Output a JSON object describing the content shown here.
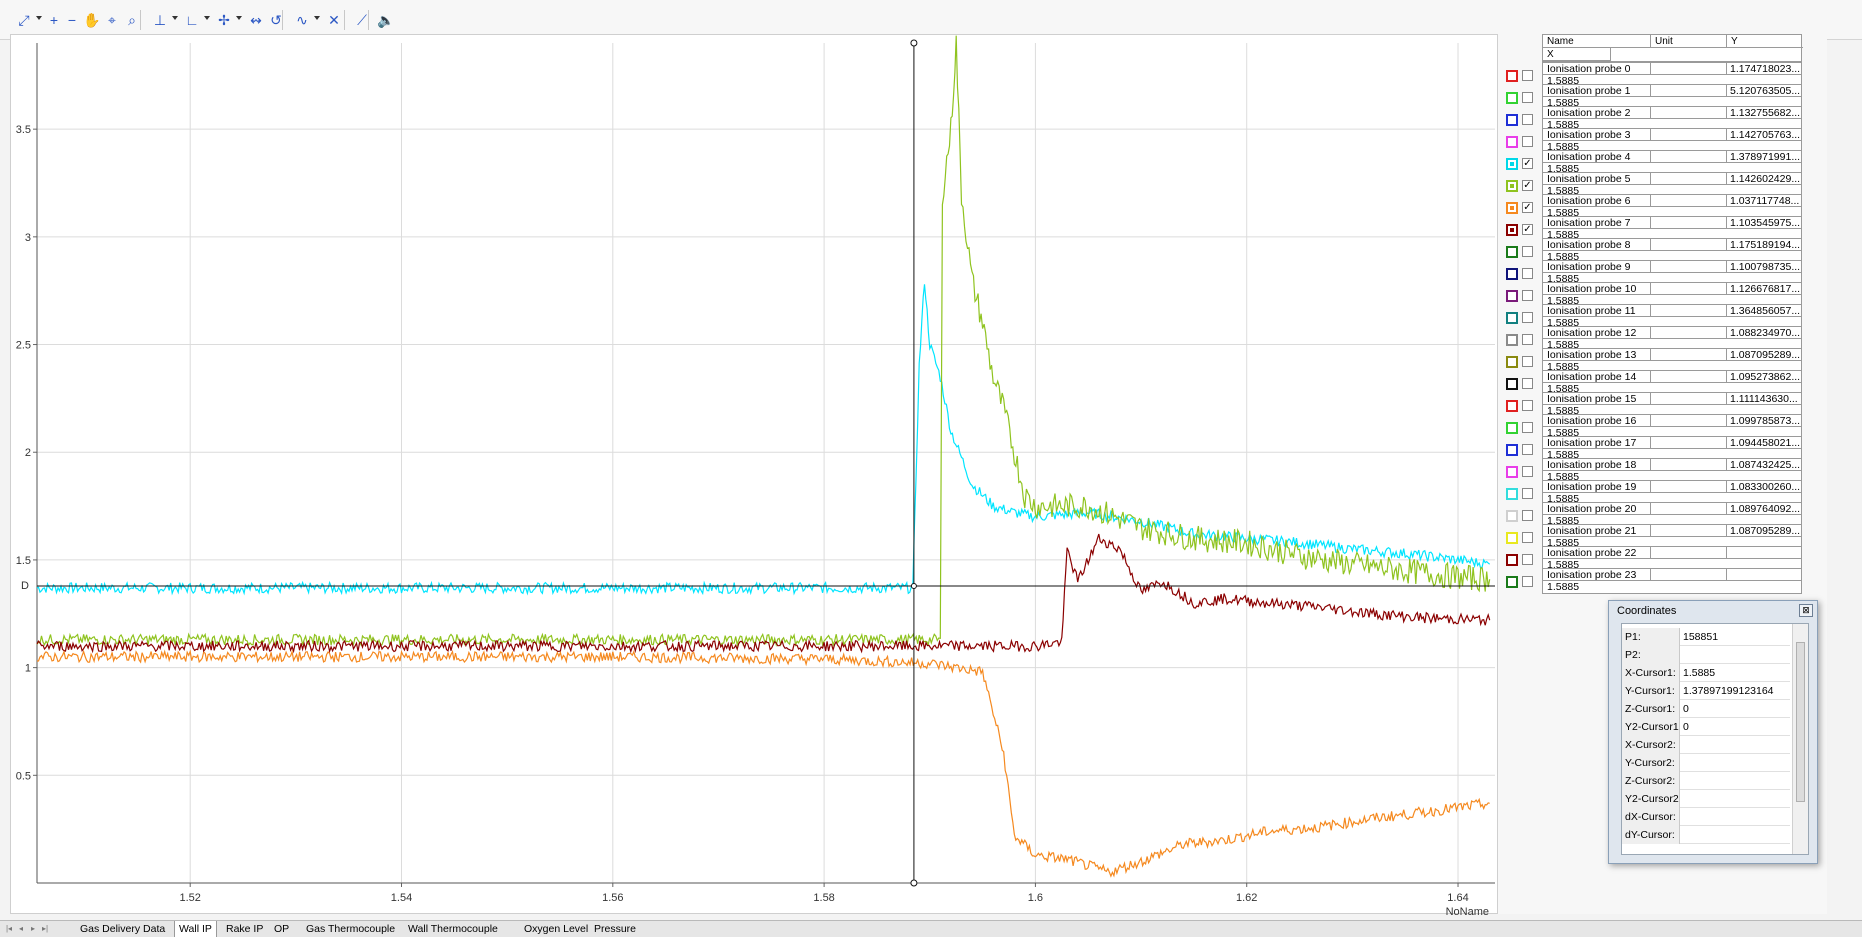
{
  "toolbar": {
    "items": [
      {
        "icon": "auto-scale-icon",
        "glyph": "⤢",
        "dropdown": true
      },
      {
        "icon": "zoom-in-icon",
        "glyph": "+"
      },
      {
        "icon": "zoom-out-icon",
        "glyph": "−"
      },
      {
        "icon": "pan-hand-icon",
        "glyph": "✋"
      },
      {
        "icon": "zoom-reset-icon",
        "glyph": "⌖"
      },
      {
        "icon": "zoom-window-icon",
        "glyph": "⌕"
      },
      {
        "icon": "y-axis-scale-icon",
        "glyph": "⊥",
        "dropdown": true
      },
      {
        "icon": "x-axis-scale-icon",
        "glyph": "∟",
        "dropdown": true
      },
      {
        "icon": "cursor-icon",
        "glyph": "✢",
        "dropdown": true
      },
      {
        "icon": "cursor-sync-icon",
        "glyph": "↭"
      },
      {
        "icon": "cursor-reset-icon",
        "glyph": "↺"
      },
      {
        "icon": "curve-fit-icon",
        "glyph": "∿",
        "dropdown": true
      },
      {
        "icon": "marker-icon",
        "glyph": "✕"
      },
      {
        "icon": "trend-icon",
        "glyph": "⟋"
      },
      {
        "icon": "sound-icon",
        "glyph": "🔈"
      }
    ]
  },
  "plot": {
    "x_axis_label": "NoName",
    "x_ticks": [
      "1.52",
      "1.54",
      "1.56",
      "1.58",
      "1.6",
      "1.62",
      "1.64"
    ],
    "y_ticks": [
      "0.5",
      "1",
      "1.5",
      "2",
      "2.5",
      "3",
      "3.5"
    ],
    "cursor_label": "D"
  },
  "chart_data": {
    "type": "line",
    "xlabel": "NoName",
    "ylabel": "",
    "xlim": [
      1.5055,
      1.6435
    ],
    "ylim": [
      0.0,
      3.9
    ],
    "grid": true,
    "cursor": {
      "x": 1.5885,
      "y": 1.37897199123164
    },
    "series": [
      {
        "name": "Ionisation probe 4",
        "color": "#00e5ff",
        "points": [
          [
            1.5055,
            1.37
          ],
          [
            1.52,
            1.37
          ],
          [
            1.54,
            1.37
          ],
          [
            1.56,
            1.37
          ],
          [
            1.58,
            1.37
          ],
          [
            1.5884,
            1.37
          ],
          [
            1.589,
            2.4
          ],
          [
            1.5895,
            2.8
          ],
          [
            1.59,
            2.5
          ],
          [
            1.591,
            2.35
          ],
          [
            1.592,
            2.1
          ],
          [
            1.594,
            1.85
          ],
          [
            1.596,
            1.75
          ],
          [
            1.598,
            1.72
          ],
          [
            1.6,
            1.7
          ],
          [
            1.605,
            1.72
          ],
          [
            1.61,
            1.68
          ],
          [
            1.615,
            1.62
          ],
          [
            1.62,
            1.6
          ],
          [
            1.625,
            1.58
          ],
          [
            1.63,
            1.55
          ],
          [
            1.635,
            1.53
          ],
          [
            1.64,
            1.5
          ],
          [
            1.643,
            1.48
          ]
        ]
      },
      {
        "name": "Ionisation probe 5",
        "color": "#8fc31f",
        "points": [
          [
            1.5055,
            1.13
          ],
          [
            1.52,
            1.13
          ],
          [
            1.54,
            1.13
          ],
          [
            1.56,
            1.13
          ],
          [
            1.58,
            1.13
          ],
          [
            1.591,
            1.13
          ],
          [
            1.5912,
            3.2
          ],
          [
            1.592,
            3.5
          ],
          [
            1.5925,
            3.9
          ],
          [
            1.593,
            3.2
          ],
          [
            1.594,
            2.8
          ],
          [
            1.595,
            2.6
          ],
          [
            1.596,
            2.35
          ],
          [
            1.597,
            2.2
          ],
          [
            1.598,
            2.0
          ],
          [
            1.599,
            1.8
          ],
          [
            1.6,
            1.75
          ],
          [
            1.605,
            1.75
          ],
          [
            1.61,
            1.65
          ],
          [
            1.615,
            1.6
          ],
          [
            1.62,
            1.58
          ],
          [
            1.625,
            1.52
          ],
          [
            1.63,
            1.48
          ],
          [
            1.635,
            1.45
          ],
          [
            1.64,
            1.42
          ],
          [
            1.643,
            1.41
          ]
        ]
      },
      {
        "name": "Ionisation probe 6",
        "color": "#f5891f",
        "points": [
          [
            1.5055,
            1.05
          ],
          [
            1.52,
            1.05
          ],
          [
            1.54,
            1.05
          ],
          [
            1.56,
            1.05
          ],
          [
            1.58,
            1.04
          ],
          [
            1.59,
            1.02
          ],
          [
            1.595,
            0.98
          ],
          [
            1.597,
            0.6
          ],
          [
            1.598,
            0.22
          ],
          [
            1.6,
            0.13
          ],
          [
            1.603,
            0.11
          ],
          [
            1.607,
            0.05
          ],
          [
            1.61,
            0.1
          ],
          [
            1.614,
            0.18
          ],
          [
            1.618,
            0.2
          ],
          [
            1.622,
            0.24
          ],
          [
            1.627,
            0.26
          ],
          [
            1.632,
            0.3
          ],
          [
            1.637,
            0.33
          ],
          [
            1.643,
            0.37
          ]
        ]
      },
      {
        "name": "Ionisation probe 7",
        "color": "#8b0000",
        "points": [
          [
            1.5055,
            1.1
          ],
          [
            1.52,
            1.1
          ],
          [
            1.54,
            1.1
          ],
          [
            1.56,
            1.1
          ],
          [
            1.58,
            1.1
          ],
          [
            1.6,
            1.1
          ],
          [
            1.6025,
            1.12
          ],
          [
            1.603,
            1.55
          ],
          [
            1.604,
            1.4
          ],
          [
            1.606,
            1.6
          ],
          [
            1.608,
            1.55
          ],
          [
            1.61,
            1.35
          ],
          [
            1.612,
            1.4
          ],
          [
            1.615,
            1.3
          ],
          [
            1.618,
            1.32
          ],
          [
            1.622,
            1.3
          ],
          [
            1.627,
            1.28
          ],
          [
            1.632,
            1.25
          ],
          [
            1.637,
            1.23
          ],
          [
            1.643,
            1.22
          ]
        ]
      }
    ]
  },
  "panel": {
    "headers": {
      "name": "Name",
      "unit": "Unit",
      "y": "Y",
      "x": "X"
    },
    "signals": [
      {
        "name": "Ionisation probe 0",
        "y": "1.174718023...",
        "x": "1.5885",
        "color": "#e02020",
        "checked": false
      },
      {
        "name": "Ionisation probe 1",
        "y": "5.120763505...",
        "x": "1.5885",
        "color": "#32d232",
        "checked": false
      },
      {
        "name": "Ionisation probe 2",
        "y": "1.132755682...",
        "x": "1.5885",
        "color": "#1f2fd6",
        "checked": false
      },
      {
        "name": "Ionisation probe 3",
        "y": "1.142705763...",
        "x": "1.5885",
        "color": "#e83ee8",
        "checked": false
      },
      {
        "name": "Ionisation probe 4",
        "y": "1.378971991...",
        "x": "1.5885",
        "color": "#00d8e8",
        "checked": true
      },
      {
        "name": "Ionisation probe 5",
        "y": "1.142602429...",
        "x": "1.5885",
        "color": "#8fc31f",
        "checked": true
      },
      {
        "name": "Ionisation probe 6",
        "y": "1.037117748...",
        "x": "1.5885",
        "color": "#f5891f",
        "checked": true
      },
      {
        "name": "Ionisation probe 7",
        "y": "1.103545975...",
        "x": "1.5885",
        "color": "#8b0000",
        "checked": true
      },
      {
        "name": "Ionisation probe 8",
        "y": "1.175189194...",
        "x": "1.5885",
        "color": "#1a7a1a",
        "checked": false
      },
      {
        "name": "Ionisation probe 9",
        "y": "1.100798735...",
        "x": "1.5885",
        "color": "#10147a",
        "checked": false
      },
      {
        "name": "Ionisation probe 10",
        "y": "1.126676817...",
        "x": "1.5885",
        "color": "#7a1a7a",
        "checked": false
      },
      {
        "name": "Ionisation probe 11",
        "y": "1.364856057...",
        "x": "1.5885",
        "color": "#128080",
        "checked": false
      },
      {
        "name": "Ionisation probe 12",
        "y": "1.088234970...",
        "x": "1.5885",
        "color": "#8a8a8a",
        "checked": false
      },
      {
        "name": "Ionisation probe 13",
        "y": "1.087095289...",
        "x": "1.5885",
        "color": "#8a8a10",
        "checked": false
      },
      {
        "name": "Ionisation probe 14",
        "y": "1.095273862...",
        "x": "1.5885",
        "color": "#111111",
        "checked": false
      },
      {
        "name": "Ionisation probe 15",
        "y": "1.111143630...",
        "x": "1.5885",
        "color": "#e02020",
        "checked": false
      },
      {
        "name": "Ionisation probe 16",
        "y": "1.099785873...",
        "x": "1.5885",
        "color": "#32d232",
        "checked": false
      },
      {
        "name": "Ionisation probe 17",
        "y": "1.094458021...",
        "x": "1.5885",
        "color": "#1f2fd6",
        "checked": false
      },
      {
        "name": "Ionisation probe 18",
        "y": "1.087432425...",
        "x": "1.5885",
        "color": "#e83ee8",
        "checked": false
      },
      {
        "name": "Ionisation probe 19",
        "y": "1.083300260...",
        "x": "1.5885",
        "color": "#33dddd",
        "checked": false
      },
      {
        "name": "Ionisation probe 20",
        "y": "1.089764092...",
        "x": "1.5885",
        "color": "#cfcfcf",
        "checked": false
      },
      {
        "name": "Ionisation probe 21",
        "y": "1.087095289...",
        "x": "1.5885",
        "color": "#e8e820",
        "checked": false
      },
      {
        "name": "Ionisation probe 22",
        "y": "",
        "x": "1.5885",
        "color": "#8b0000",
        "checked": false
      },
      {
        "name": "Ionisation probe 23",
        "y": "",
        "x": "1.5885",
        "color": "#1a7a1a",
        "checked": false
      }
    ]
  },
  "coordinates": {
    "title": "Coordinates",
    "close_glyph": "⊠",
    "rows": [
      {
        "label": "P1:",
        "value": "158851"
      },
      {
        "label": "P2:",
        "value": ""
      },
      {
        "label": "X-Cursor1:",
        "value": "1.5885"
      },
      {
        "label": "Y-Cursor1:",
        "value": "1.37897199123164"
      },
      {
        "label": "Z-Cursor1:",
        "value": "0"
      },
      {
        "label": "Y2-Cursor1",
        "value": "0"
      },
      {
        "label": "X-Cursor2:",
        "value": ""
      },
      {
        "label": "Y-Cursor2:",
        "value": ""
      },
      {
        "label": "Z-Cursor2:",
        "value": ""
      },
      {
        "label": "Y2-Cursor2",
        "value": ""
      },
      {
        "label": "dX-Cursor:",
        "value": ""
      },
      {
        "label": "dY-Cursor:",
        "value": ""
      }
    ]
  },
  "tabs": {
    "nav": [
      "|◂",
      "◂",
      "▸",
      "▸|"
    ],
    "items": [
      {
        "label": "Gas Delivery Data",
        "active": false
      },
      {
        "label": "Wall IP",
        "active": true
      },
      {
        "label": "Rake IP",
        "active": false
      },
      {
        "label": "OP",
        "active": false
      },
      {
        "label": "Gas Thermocouple",
        "active": false
      },
      {
        "label": "Wall Thermocouple",
        "active": false
      },
      {
        "label": "Oxygen Level",
        "active": false
      },
      {
        "label": "Pressure",
        "active": false
      }
    ]
  }
}
